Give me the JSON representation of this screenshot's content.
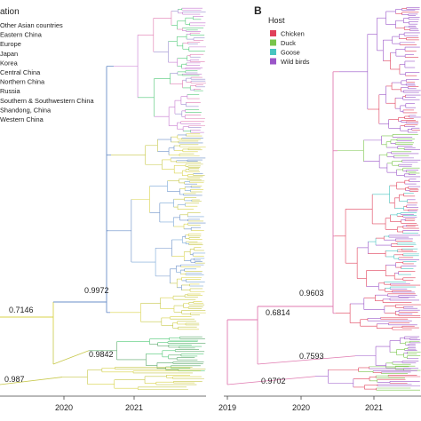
{
  "panel_a": {
    "legend_title": "ation",
    "legend_items": [
      {
        "label": "Other Asian countries",
        "color": "#9b8fd0"
      },
      {
        "label": "Eastern China",
        "color": "#e8a040"
      },
      {
        "label": "Europe",
        "color": "#c7c84a"
      },
      {
        "label": "Japan",
        "color": "#7aa8d8"
      },
      {
        "label": "Korea",
        "color": "#4fc5d6"
      },
      {
        "label": "Central China",
        "color": "#5aa86a"
      },
      {
        "label": "Northern China",
        "color": "#52c978"
      },
      {
        "label": "Russia",
        "color": "#6a8fc8"
      },
      {
        "label": "Southern & Southwestern China",
        "color": "#c77ad0"
      },
      {
        "label": "Shandong, China",
        "color": "#e07ab0"
      },
      {
        "label": "Western China",
        "color": "#d9d34a"
      }
    ],
    "node_labels": [
      {
        "value": "0.9972"
      },
      {
        "value": "0.7146"
      },
      {
        "value": "0.9842"
      },
      {
        "value": "0.987"
      }
    ],
    "axis_ticks": [
      "2020",
      "2021"
    ]
  },
  "panel_b": {
    "panel_letter": "B",
    "legend_title": "Host",
    "legend_items": [
      {
        "label": "Chicken",
        "color": "#e0405a"
      },
      {
        "label": "Duck",
        "color": "#79c44a"
      },
      {
        "label": "Goose",
        "color": "#48c4c0"
      },
      {
        "label": "Wild birds",
        "color": "#9a55c8"
      }
    ],
    "node_labels": [
      {
        "value": "0.9603"
      },
      {
        "value": "0.6814"
      },
      {
        "value": "0.7593"
      },
      {
        "value": "0.9702"
      }
    ],
    "axis_ticks": [
      "2019",
      "2020",
      "2021"
    ]
  }
}
